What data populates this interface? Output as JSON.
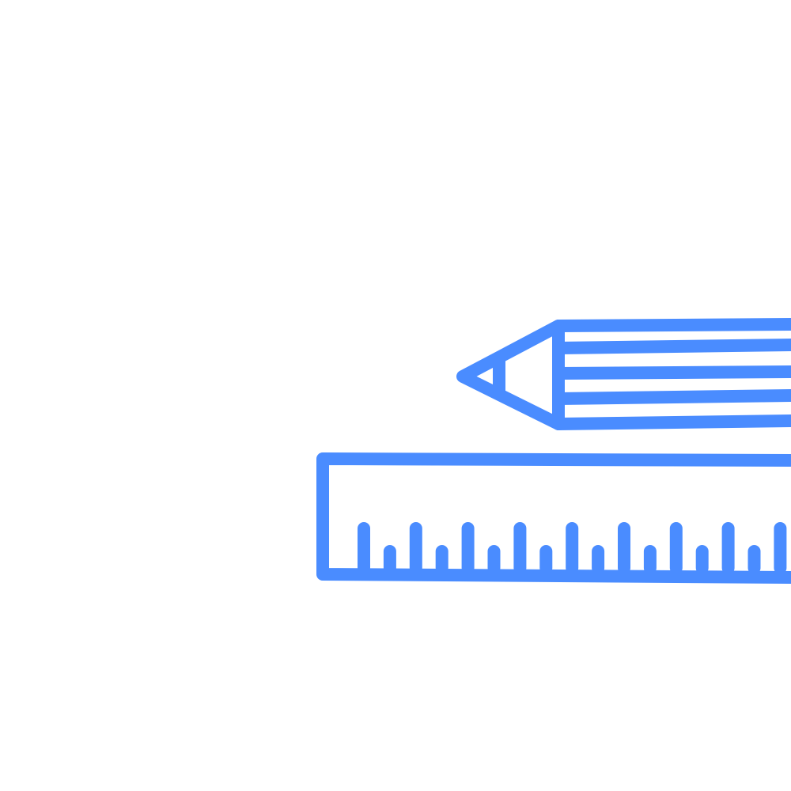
{
  "illustration": {
    "icons": [
      "pencil-icon",
      "ruler-icon"
    ],
    "stroke_color": "#4a8cff",
    "background_color": "#ffffff"
  }
}
